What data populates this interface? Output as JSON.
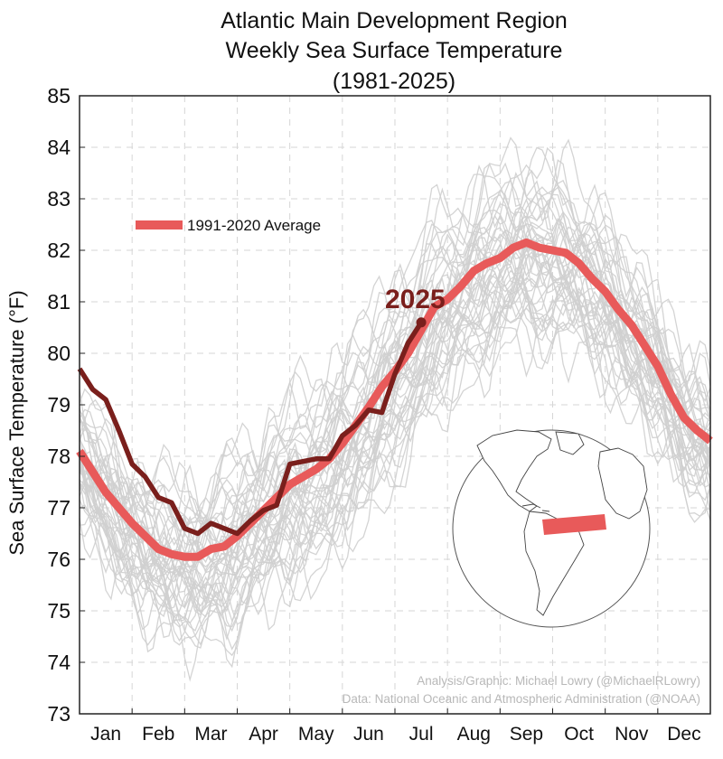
{
  "chart_data": {
    "type": "line",
    "title": "Atlantic Main Development Region",
    "subtitle": "Weekly Sea Surface Temperature",
    "years": "(1981-2025)",
    "ylabel": "Sea Surface Temperature (°F)",
    "ylim": [
      73,
      85
    ],
    "yticks": [
      "73",
      "74",
      "75",
      "76",
      "77",
      "78",
      "79",
      "80",
      "81",
      "82",
      "83",
      "84",
      "85"
    ],
    "x_axis": "month of year",
    "xlim": [
      0,
      12
    ],
    "months": [
      "Jan",
      "Feb",
      "Mar",
      "Apr",
      "May",
      "Jun",
      "Jul",
      "Aug",
      "Sep",
      "Oct",
      "Nov",
      "Dec"
    ],
    "grid": true,
    "legend": {
      "position": "upper-left",
      "label": "1991-2020 Average"
    },
    "colors": {
      "average": "#e85a5a",
      "current_year": "#7a1f1c",
      "historical": "#cfcfcf",
      "map_box": "#e85a5a"
    },
    "series": [
      {
        "name": "1991-2020 Average",
        "x": [
          0.0,
          0.25,
          0.5,
          0.75,
          1.0,
          1.25,
          1.5,
          1.75,
          2.0,
          2.25,
          2.5,
          2.75,
          3.0,
          3.25,
          3.5,
          3.75,
          4.0,
          4.25,
          4.5,
          4.75,
          5.0,
          5.25,
          5.5,
          5.75,
          6.0,
          6.25,
          6.5,
          6.75,
          7.0,
          7.25,
          7.5,
          7.75,
          8.0,
          8.25,
          8.5,
          8.75,
          9.0,
          9.25,
          9.5,
          9.75,
          10.0,
          10.25,
          10.5,
          10.75,
          11.0,
          11.25,
          11.5,
          11.75,
          12.0
        ],
        "values": [
          78.1,
          77.7,
          77.3,
          77.0,
          76.7,
          76.45,
          76.2,
          76.1,
          76.05,
          76.05,
          76.2,
          76.25,
          76.45,
          76.7,
          76.95,
          77.2,
          77.45,
          77.6,
          77.75,
          77.95,
          78.25,
          78.6,
          78.95,
          79.35,
          79.65,
          80.0,
          80.45,
          80.9,
          81.05,
          81.3,
          81.6,
          81.75,
          81.85,
          82.05,
          82.15,
          82.05,
          82.0,
          81.95,
          81.75,
          81.45,
          81.2,
          80.85,
          80.55,
          80.15,
          79.75,
          79.2,
          78.75,
          78.5,
          78.3
        ]
      },
      {
        "name": "2025",
        "x": [
          0.0,
          0.25,
          0.5,
          0.75,
          1.0,
          1.25,
          1.5,
          1.75,
          2.0,
          2.25,
          2.5,
          2.75,
          3.0,
          3.25,
          3.5,
          3.75,
          4.0,
          4.25,
          4.5,
          4.75,
          5.0,
          5.25,
          5.5,
          5.75,
          6.0,
          6.25,
          6.5
        ],
        "values": [
          79.7,
          79.3,
          79.1,
          78.5,
          77.85,
          77.6,
          77.2,
          77.1,
          76.6,
          76.5,
          76.7,
          76.6,
          76.5,
          76.75,
          76.95,
          77.05,
          77.85,
          77.9,
          77.95,
          77.95,
          78.4,
          78.6,
          78.9,
          78.85,
          79.6,
          80.2,
          80.6
        ]
      }
    ],
    "historical_years_shown": "1981-2024",
    "current_year_label": "2025",
    "inset_map": "globe centered on the Atlantic, box marking the Main Development Region",
    "credits": [
      "Analysis/Graphic: Michael Lowry (@MichaelRLowry)",
      "Data: National Oceanic and Atmospheric Administration (@NOAA)"
    ]
  }
}
